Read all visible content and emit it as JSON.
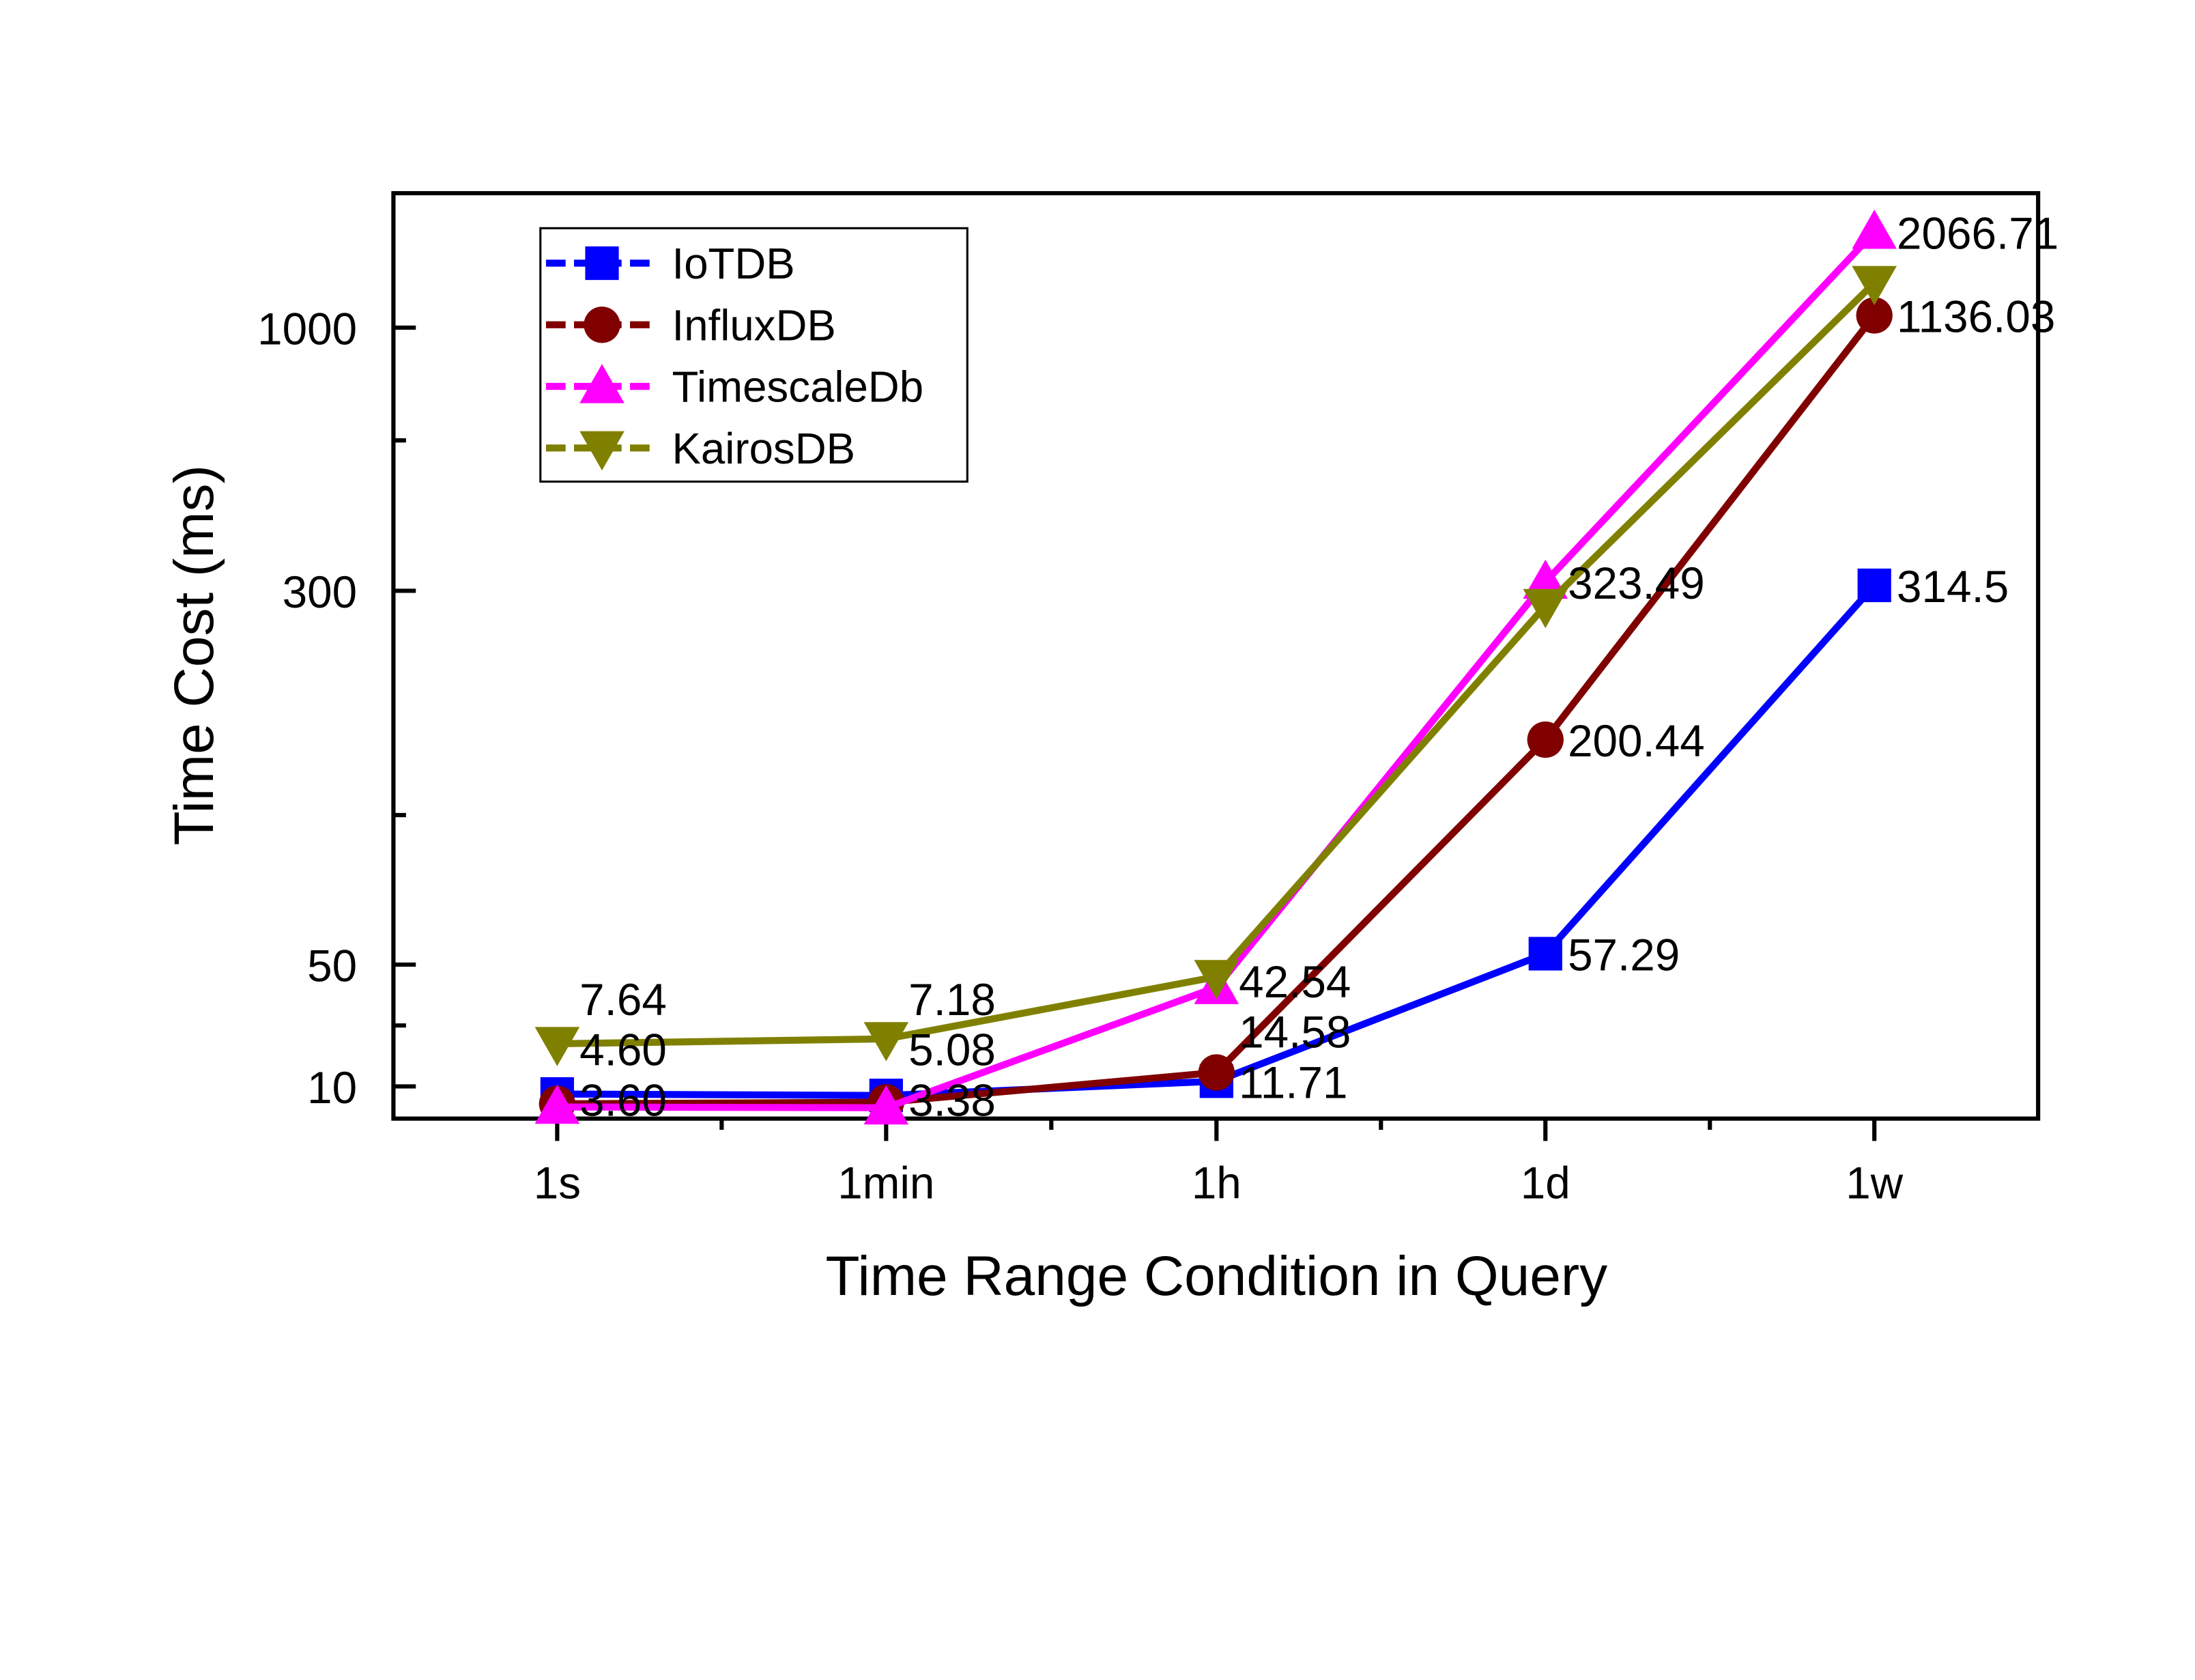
{
  "chart_data": {
    "type": "line",
    "title": "",
    "xlabel": "Time Range Condition in Query",
    "ylabel": "Time Cost (ms)",
    "categories": [
      "1s",
      "1min",
      "1h",
      "1d",
      "1w"
    ],
    "y_ticks": [
      10,
      50,
      300,
      1000
    ],
    "y_tick_labels": [
      "10",
      "50",
      "300",
      "1000"
    ],
    "ylim": [
      0,
      2500
    ],
    "grid": false,
    "legend_position": "top-left",
    "series": [
      {
        "name": "IoTDB",
        "color": "#0000ff",
        "marker": "square",
        "values": [
          7.64,
          7.18,
          11.71,
          57.29,
          314.5
        ],
        "labels": [
          "7.64",
          "7.18",
          "11.71",
          "57.29",
          "314.5"
        ]
      },
      {
        "name": "InfluxDB",
        "color": "#800000",
        "marker": "circle",
        "values": [
          4.6,
          5.08,
          14.58,
          200.44,
          1136.03
        ],
        "labels": [
          "4.60",
          "5.08",
          "14.58",
          "200.44",
          "1136.03"
        ]
      },
      {
        "name": "TimescaleDb",
        "color": "#ff00ff",
        "marker": "triangle-up",
        "values": [
          3.6,
          3.38,
          42.54,
          323.49,
          2066.71
        ],
        "labels": [
          "3.60",
          "3.38",
          "42.54",
          "323.49",
          "2066.71"
        ]
      },
      {
        "name": "KairosDB",
        "color": "#808000",
        "marker": "triangle-down",
        "values": [
          24.0,
          25.6,
          46.0,
          290.0,
          1500.0
        ],
        "labels": []
      }
    ]
  }
}
